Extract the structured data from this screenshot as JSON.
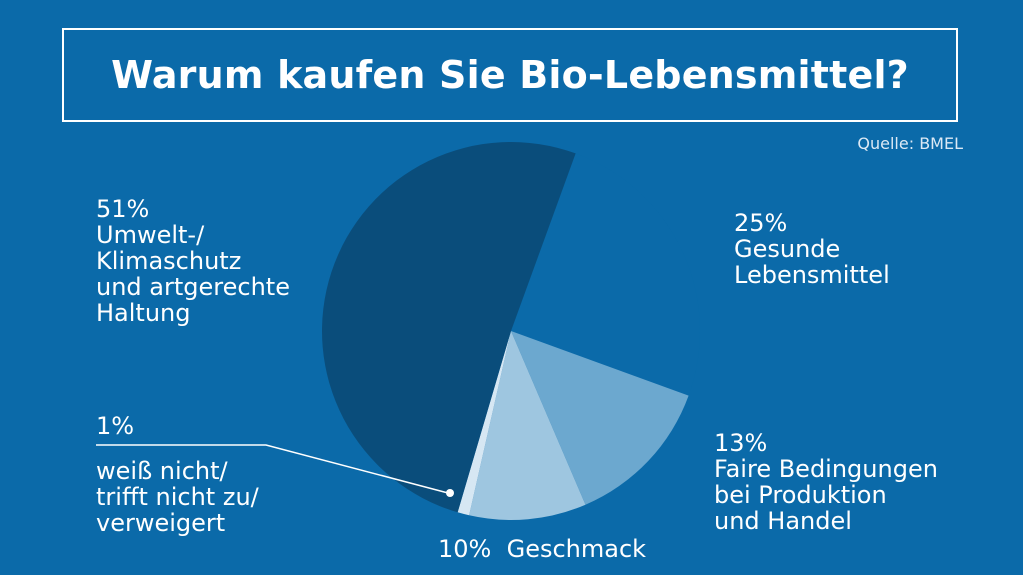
{
  "title": "Warum kaufen Sie Bio-Lebensmittel?",
  "source": "Quelle: BMEL",
  "colors": {
    "background": "#0b6aa9",
    "slice_1": "#0a4d7b",
    "slice_2": "#0b6aa9",
    "slice_3": "#6ca8cf",
    "slice_4": "#9ec6e0",
    "slice_5": "#d6e7f3"
  },
  "chart_data": {
    "type": "pie",
    "title": "Warum kaufen Sie Bio-Lebensmittel?",
    "unit": "%",
    "slices": [
      {
        "label": "Umwelt-/ Klimaschutz und artgerechte Haltung",
        "value": 51,
        "color": "#0a4d7b"
      },
      {
        "label": "Gesunde Lebensmittel",
        "value": 25,
        "color": "#0b6aa9"
      },
      {
        "label": "Faire Bedingungen bei Produktion und Handel",
        "value": 13,
        "color": "#6ca8cf"
      },
      {
        "label": "Geschmack",
        "value": 10,
        "color": "#9ec6e0"
      },
      {
        "label": "weiß nicht/ trifft nicht zu/ verweigert",
        "value": 1,
        "color": "#d6e7f3"
      }
    ]
  },
  "labels": {
    "l51": {
      "pct": "51%",
      "lines": [
        "Umwelt-/",
        "Klimaschutz",
        "und artgerechte",
        "Haltung"
      ]
    },
    "l25": {
      "pct": "25%",
      "lines": [
        "Gesunde",
        "Lebensmittel"
      ]
    },
    "l13": {
      "pct": "13%",
      "lines": [
        "Faire Bedingungen",
        "bei Produktion",
        "und Handel"
      ]
    },
    "l10": {
      "pct": "10%",
      "text": "Geschmack"
    },
    "l1": {
      "pct": "1%",
      "lines": [
        "weiß nicht/",
        "trifft nicht zu/",
        "verweigert"
      ]
    }
  }
}
